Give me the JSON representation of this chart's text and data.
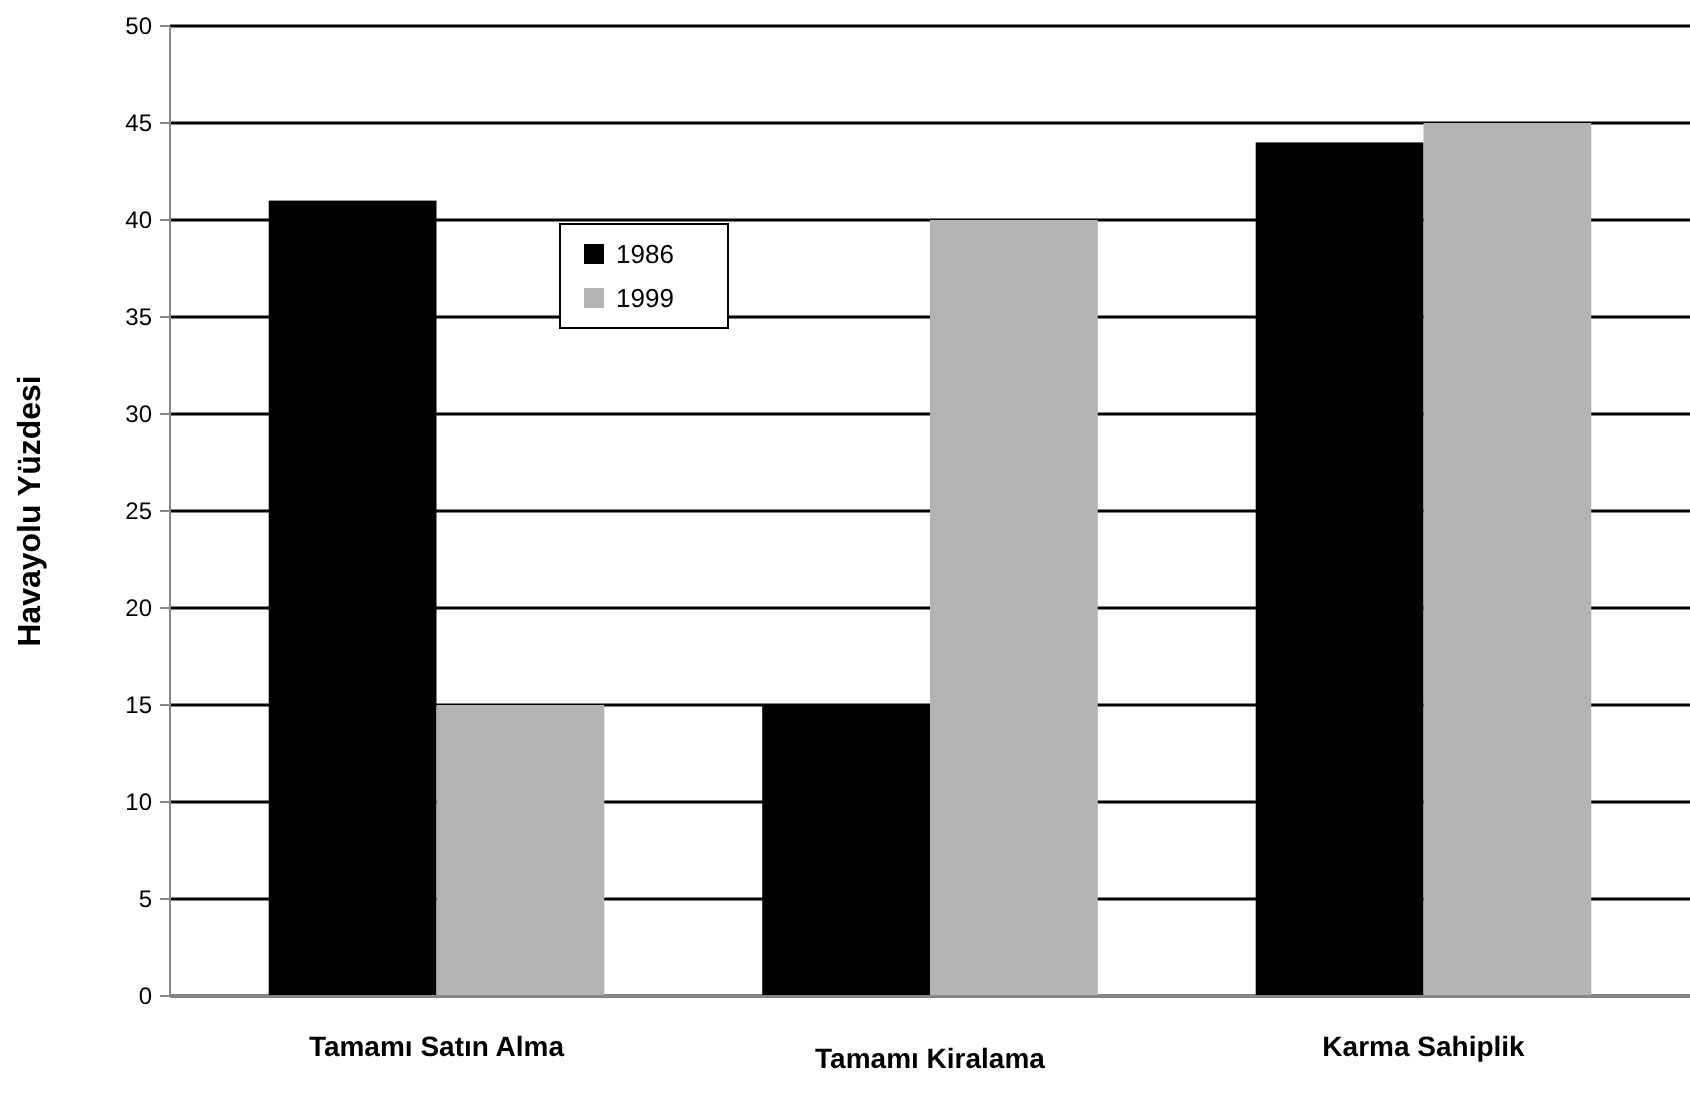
{
  "chart_data": {
    "type": "bar",
    "ylabel": "Havayolu Yüzdesi",
    "categories": [
      "Tamamı Satın Alma",
      "Tamamı Kiralama",
      "Karma Sahiplik"
    ],
    "series": [
      {
        "name": "1986",
        "color": "#000000",
        "values": [
          41,
          15,
          44
        ]
      },
      {
        "name": "1999",
        "color": "#b3b3b3",
        "values": [
          15,
          40,
          45
        ]
      }
    ],
    "ylim": [
      0,
      50
    ],
    "yticks": [
      0,
      5,
      10,
      15,
      20,
      25,
      30,
      35,
      40,
      45,
      50
    ],
    "grid": "y",
    "legend": "top left"
  }
}
